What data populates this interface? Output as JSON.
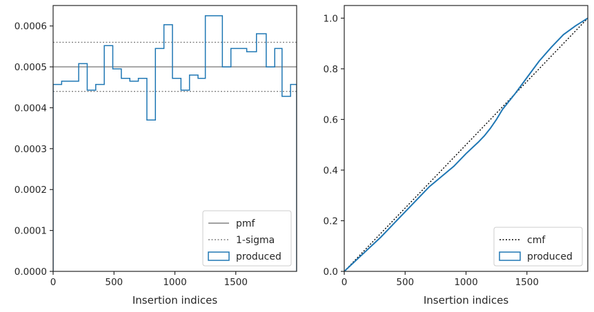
{
  "chart_data": [
    {
      "type": "step",
      "xlabel": "Insertion indices",
      "ylabel": "",
      "xlim": [
        0,
        2000
      ],
      "ylim": [
        0,
        0.00065
      ],
      "xticks": [
        0,
        500,
        1000,
        1500
      ],
      "xtick_labels": [
        "0",
        "500",
        "1000",
        "1500"
      ],
      "yticks": [
        0,
        0.0001,
        0.0002,
        0.0003,
        0.0004,
        0.0005,
        0.0006
      ],
      "ytick_labels": [
        "0.0000",
        "0.0001",
        "0.0002",
        "0.0003",
        "0.0004",
        "0.0005",
        "0.0006"
      ],
      "legend_position": "lower right",
      "lines": [
        {
          "name": "pmf",
          "y": 0.0005,
          "style": "solid",
          "color": "#808080"
        },
        {
          "name": "1-sigma",
          "y": 0.00044,
          "style": "dotted",
          "color": "#808080"
        },
        {
          "name": "1-sigma",
          "y": 0.00056,
          "style": "dotted",
          "color": "#808080",
          "legend": false
        }
      ],
      "series": [
        {
          "name": "produced",
          "color": "#1f77b4",
          "bin_edges": [
            0,
            70,
            140,
            210,
            280,
            350,
            420,
            490,
            560,
            630,
            700,
            770,
            840,
            910,
            980,
            1050,
            1120,
            1190,
            1250,
            1390,
            1460,
            1520,
            1590,
            1670,
            1750,
            1820,
            1880,
            1950,
            2000
          ],
          "values": [
            0.000457,
            0.000465,
            0.000465,
            0.000508,
            0.000443,
            0.000457,
            0.000552,
            0.000495,
            0.000472,
            0.000465,
            0.000472,
            0.00037,
            0.000545,
            0.000603,
            0.000472,
            0.000443,
            0.00048,
            0.000472,
            0.000625,
            0.0005,
            0.000545,
            0.000545,
            0.000537,
            0.000581,
            0.0005,
            0.000545,
            0.000428,
            0.000457
          ]
        }
      ]
    },
    {
      "type": "line",
      "xlabel": "Insertion indices",
      "ylabel": "",
      "xlim": [
        0,
        2000
      ],
      "ylim": [
        0,
        1.05
      ],
      "xticks": [
        0,
        500,
        1000,
        1500
      ],
      "xtick_labels": [
        "0",
        "500",
        "1000",
        "1500"
      ],
      "yticks": [
        0,
        0.2,
        0.4,
        0.6,
        0.8,
        1.0
      ],
      "ytick_labels": [
        "0.0",
        "0.2",
        "0.4",
        "0.6",
        "0.8",
        "1.0"
      ],
      "legend_position": "lower right",
      "series": [
        {
          "name": "cmf",
          "style": "dotted",
          "color": "#000000",
          "x": [
            0,
            2000
          ],
          "y": [
            0,
            1.0
          ]
        },
        {
          "name": "produced",
          "style": "solid",
          "color": "#1f77b4",
          "x": [
            0,
            100,
            200,
            300,
            400,
            500,
            600,
            700,
            800,
            900,
            1000,
            1100,
            1150,
            1200,
            1250,
            1300,
            1400,
            1500,
            1600,
            1700,
            1800,
            1900,
            2000
          ],
          "y": [
            0,
            0.045,
            0.09,
            0.135,
            0.185,
            0.235,
            0.285,
            0.335,
            0.375,
            0.415,
            0.465,
            0.51,
            0.535,
            0.565,
            0.6,
            0.64,
            0.7,
            0.765,
            0.83,
            0.885,
            0.935,
            0.97,
            1.0
          ]
        }
      ]
    }
  ]
}
